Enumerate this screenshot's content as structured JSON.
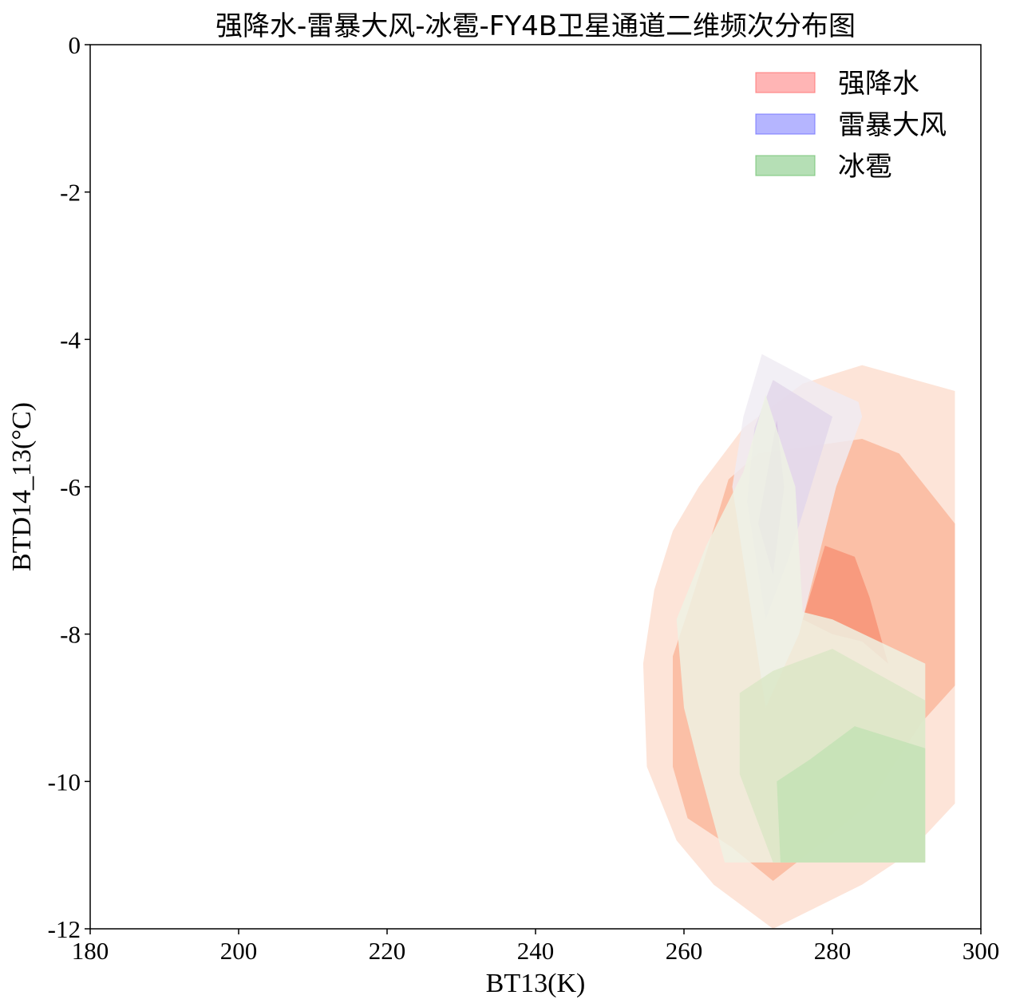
{
  "chart_data": {
    "type": "contour",
    "title": "强降水-雷暴大风-冰雹-FY4B卫星通道二维频次分布图",
    "xlabel": "BT13(K)",
    "ylabel": "BTD14_13(°C)",
    "xlim": [
      180,
      300
    ],
    "ylim": [
      -12,
      0
    ],
    "xticks": [
      "180",
      "200",
      "220",
      "240",
      "260",
      "280",
      "300"
    ],
    "yticks": [
      "0",
      "-2",
      "-4",
      "-6",
      "-8",
      "-10",
      "-12"
    ],
    "legend_position": "upper right",
    "legend": [
      {
        "name": "强降水",
        "color": "#ff6b6b"
      },
      {
        "name": "雷暴大风",
        "color": "#6b6bff"
      },
      {
        "name": "冰雹",
        "color": "#6cbf6c"
      }
    ],
    "series": [
      {
        "name": "强降水",
        "levels": [
          {
            "color": "#fde4d8",
            "points": [
              [
                272,
                -12.0
              ],
              [
                284,
                -11.4
              ],
              [
                290,
                -11.0
              ],
              [
                296.5,
                -10.3
              ],
              [
                296.5,
                -4.7
              ],
              [
                284,
                -4.35
              ],
              [
                276,
                -4.6
              ],
              [
                268,
                -5.2
              ],
              [
                262,
                -6.0
              ],
              [
                258.5,
                -6.6
              ],
              [
                256,
                -7.4
              ],
              [
                254.5,
                -8.4
              ],
              [
                255,
                -9.8
              ],
              [
                259,
                -10.8
              ],
              [
                264,
                -11.4
              ]
            ]
          },
          {
            "color": "#fbbfa6",
            "points": [
              [
                272,
                -11.35
              ],
              [
                279,
                -10.8
              ],
              [
                285,
                -10.3
              ],
              [
                292,
                -9.2
              ],
              [
                296.5,
                -8.7
              ],
              [
                296.5,
                -6.5
              ],
              [
                289,
                -5.55
              ],
              [
                284,
                -5.35
              ],
              [
                277,
                -5.45
              ],
              [
                270,
                -5.55
              ],
              [
                266,
                -5.9
              ],
              [
                263,
                -6.9
              ],
              [
                260.5,
                -7.7
              ],
              [
                258.5,
                -8.3
              ],
              [
                258.5,
                -9.8
              ],
              [
                260.5,
                -10.5
              ],
              [
                266.5,
                -10.9
              ]
            ]
          },
          {
            "color": "#f89a7e",
            "points": [
              [
                276,
                -7.8
              ],
              [
                279,
                -6.8
              ],
              [
                283,
                -6.95
              ],
              [
                285,
                -7.5
              ],
              [
                287.5,
                -8.4
              ],
              [
                284,
                -8.1
              ],
              [
                280,
                -8.0
              ]
            ]
          }
        ]
      },
      {
        "name": "雷暴大风",
        "levels": [
          {
            "color": "#efecf3",
            "points": [
              [
                270.5,
                -4.2
              ],
              [
                268,
                -5.05
              ],
              [
                266.5,
                -6.0
              ],
              [
                271,
                -9.0
              ],
              [
                275.5,
                -8.0
              ],
              [
                280.5,
                -6.0
              ],
              [
                284,
                -5.05
              ],
              [
                283.5,
                -4.85
              ],
              [
                278,
                -4.6
              ]
            ]
          },
          {
            "color": "#e2d7ea",
            "points": [
              [
                272,
                -4.55
              ],
              [
                269.5,
                -5.2
              ],
              [
                268.5,
                -6.2
              ],
              [
                271,
                -7.8
              ],
              [
                274,
                -7.0
              ],
              [
                276.5,
                -6.2
              ],
              [
                280,
                -5.05
              ],
              [
                276,
                -4.8
              ]
            ]
          },
          {
            "color": "#d5bfe0",
            "points": [
              [
                272.5,
                -5.1
              ],
              [
                270,
                -6.5
              ],
              [
                272,
                -7.2
              ],
              [
                273.5,
                -6.0
              ]
            ]
          }
        ]
      },
      {
        "name": "冰雹",
        "levels": [
          {
            "color": "#eef3e4",
            "points": [
              [
                265.5,
                -11.1
              ],
              [
                276.5,
                -11.1
              ],
              [
                292.5,
                -11.1
              ],
              [
                292.5,
                -8.4
              ],
              [
                280,
                -7.8
              ],
              [
                276,
                -7.7
              ],
              [
                275,
                -6.0
              ],
              [
                271,
                -4.75
              ],
              [
                268,
                -5.8
              ],
              [
                263,
                -6.8
              ],
              [
                259,
                -7.8
              ],
              [
                260,
                -9.0
              ],
              [
                262,
                -9.8
              ]
            ]
          },
          {
            "color": "#dbe7c6",
            "points": [
              [
                272,
                -11.1
              ],
              [
                281,
                -11.1
              ],
              [
                292.5,
                -11.1
              ],
              [
                292.5,
                -8.9
              ],
              [
                280,
                -8.2
              ],
              [
                272,
                -8.5
              ],
              [
                267.5,
                -8.8
              ],
              [
                267.5,
                -9.9
              ]
            ]
          },
          {
            "color": "#c3e2b5",
            "points": [
              [
                273,
                -11.1
              ],
              [
                292.5,
                -11.1
              ],
              [
                292.5,
                -9.55
              ],
              [
                283,
                -9.25
              ],
              [
                277,
                -9.7
              ],
              [
                272.5,
                -10.0
              ]
            ]
          }
        ]
      }
    ]
  }
}
